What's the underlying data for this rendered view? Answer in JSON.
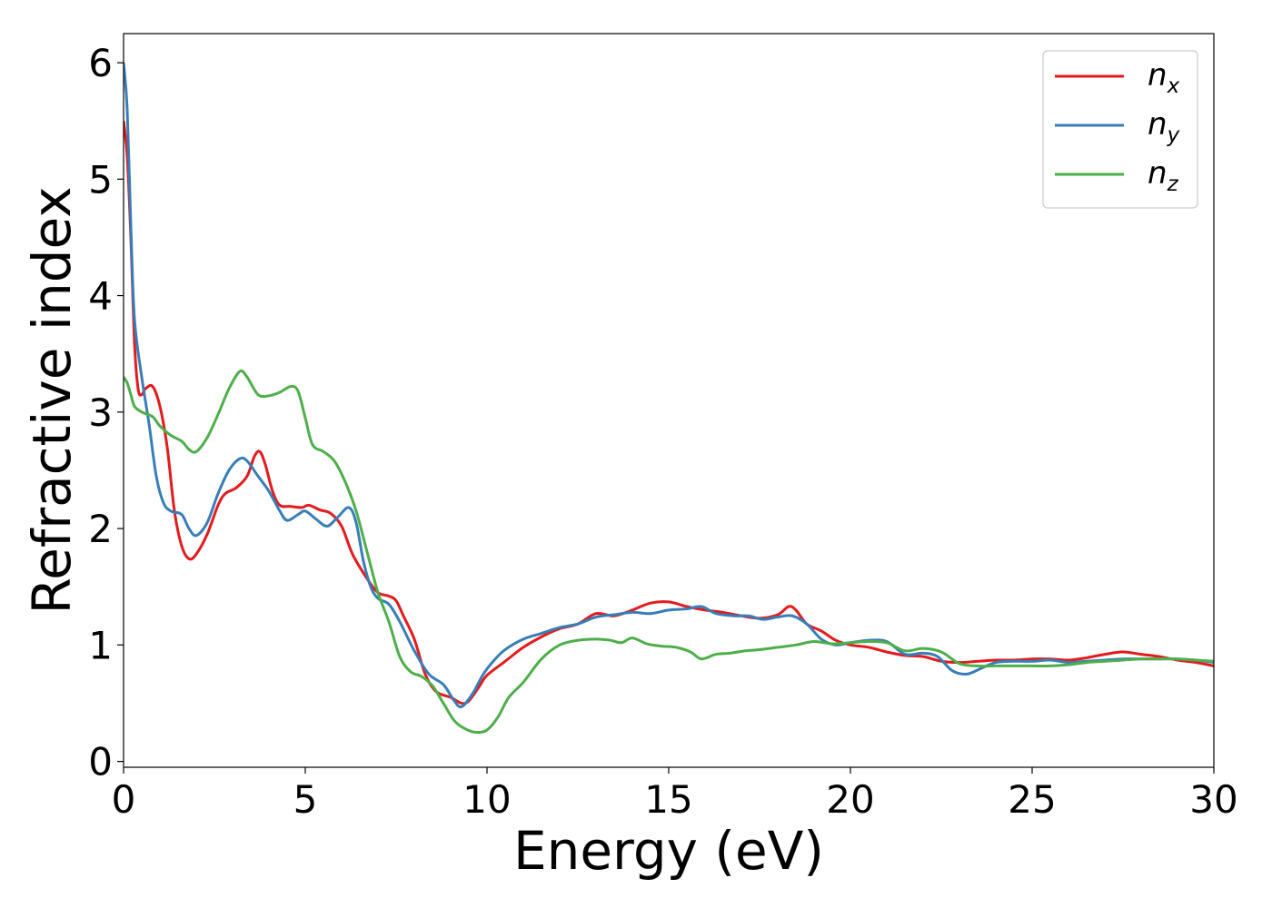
{
  "chart_data": {
    "type": "line",
    "title": "",
    "xlabel": "Energy (eV)",
    "ylabel": "Refractive index",
    "xlim": [
      0,
      30
    ],
    "ylim": [
      -0.05,
      6.25
    ],
    "x_ticks": [
      "0",
      "5",
      "10",
      "15",
      "20",
      "25",
      "30"
    ],
    "y_ticks": [
      "0",
      "1",
      "2",
      "3",
      "4",
      "5",
      "6"
    ],
    "grid": false,
    "legend_position": "top-right",
    "series": [
      {
        "name": "n",
        "subscript": "x",
        "color": "#e41a1c",
        "points": [
          [
            0,
            5.5
          ],
          [
            0.1,
            5.2
          ],
          [
            0.2,
            4.5
          ],
          [
            0.3,
            3.6
          ],
          [
            0.4,
            3.2
          ],
          [
            0.5,
            3.15
          ],
          [
            0.6,
            3.2
          ],
          [
            0.8,
            3.22
          ],
          [
            1.0,
            3.05
          ],
          [
            1.2,
            2.7
          ],
          [
            1.4,
            2.15
          ],
          [
            1.6,
            1.85
          ],
          [
            1.8,
            1.74
          ],
          [
            2.0,
            1.78
          ],
          [
            2.3,
            1.95
          ],
          [
            2.6,
            2.2
          ],
          [
            2.8,
            2.3
          ],
          [
            3.1,
            2.35
          ],
          [
            3.4,
            2.45
          ],
          [
            3.6,
            2.62
          ],
          [
            3.75,
            2.66
          ],
          [
            3.9,
            2.55
          ],
          [
            4.1,
            2.32
          ],
          [
            4.3,
            2.2
          ],
          [
            4.6,
            2.19
          ],
          [
            4.9,
            2.18
          ],
          [
            5.1,
            2.2
          ],
          [
            5.4,
            2.16
          ],
          [
            5.7,
            2.13
          ],
          [
            6.0,
            2.02
          ],
          [
            6.3,
            1.78
          ],
          [
            6.7,
            1.57
          ],
          [
            7.0,
            1.45
          ],
          [
            7.3,
            1.42
          ],
          [
            7.5,
            1.38
          ],
          [
            7.7,
            1.25
          ],
          [
            8.0,
            1.05
          ],
          [
            8.3,
            0.75
          ],
          [
            8.6,
            0.6
          ],
          [
            9.0,
            0.55
          ],
          [
            9.3,
            0.5
          ],
          [
            9.5,
            0.52
          ],
          [
            9.8,
            0.65
          ],
          [
            10.0,
            0.74
          ],
          [
            10.5,
            0.86
          ],
          [
            11.0,
            0.98
          ],
          [
            11.5,
            1.07
          ],
          [
            12.0,
            1.14
          ],
          [
            12.5,
            1.18
          ],
          [
            13.0,
            1.27
          ],
          [
            13.5,
            1.25
          ],
          [
            14.0,
            1.3
          ],
          [
            14.5,
            1.36
          ],
          [
            15.0,
            1.37
          ],
          [
            15.5,
            1.33
          ],
          [
            16.0,
            1.3
          ],
          [
            16.5,
            1.28
          ],
          [
            17.0,
            1.25
          ],
          [
            17.5,
            1.23
          ],
          [
            18.0,
            1.26
          ],
          [
            18.3,
            1.33
          ],
          [
            18.5,
            1.3
          ],
          [
            18.8,
            1.18
          ],
          [
            19.2,
            1.12
          ],
          [
            19.6,
            1.04
          ],
          [
            20.0,
            1.0
          ],
          [
            20.5,
            0.98
          ],
          [
            21.0,
            0.94
          ],
          [
            21.5,
            0.91
          ],
          [
            22.0,
            0.9
          ],
          [
            22.5,
            0.86
          ],
          [
            23.0,
            0.85
          ],
          [
            23.5,
            0.86
          ],
          [
            24.0,
            0.87
          ],
          [
            24.5,
            0.87
          ],
          [
            25.0,
            0.88
          ],
          [
            25.5,
            0.88
          ],
          [
            26.0,
            0.87
          ],
          [
            26.5,
            0.89
          ],
          [
            27.0,
            0.92
          ],
          [
            27.5,
            0.94
          ],
          [
            28.0,
            0.92
          ],
          [
            28.5,
            0.9
          ],
          [
            29.0,
            0.87
          ],
          [
            29.5,
            0.85
          ],
          [
            30.0,
            0.82
          ]
        ]
      },
      {
        "name": "n",
        "subscript": "y",
        "color": "#377eb8",
        "points": [
          [
            0,
            6.0
          ],
          [
            0.1,
            5.6
          ],
          [
            0.2,
            4.6
          ],
          [
            0.3,
            3.8
          ],
          [
            0.5,
            3.3
          ],
          [
            0.7,
            2.9
          ],
          [
            0.9,
            2.45
          ],
          [
            1.1,
            2.22
          ],
          [
            1.3,
            2.15
          ],
          [
            1.6,
            2.12
          ],
          [
            1.8,
            2.0
          ],
          [
            2.0,
            1.94
          ],
          [
            2.3,
            2.05
          ],
          [
            2.6,
            2.3
          ],
          [
            2.9,
            2.5
          ],
          [
            3.2,
            2.6
          ],
          [
            3.4,
            2.58
          ],
          [
            3.7,
            2.45
          ],
          [
            4.0,
            2.32
          ],
          [
            4.3,
            2.15
          ],
          [
            4.5,
            2.07
          ],
          [
            4.8,
            2.12
          ],
          [
            5.0,
            2.15
          ],
          [
            5.3,
            2.08
          ],
          [
            5.6,
            2.02
          ],
          [
            5.9,
            2.1
          ],
          [
            6.2,
            2.18
          ],
          [
            6.4,
            2.05
          ],
          [
            6.6,
            1.72
          ],
          [
            6.8,
            1.5
          ],
          [
            7.0,
            1.4
          ],
          [
            7.3,
            1.35
          ],
          [
            7.6,
            1.2
          ],
          [
            8.0,
            0.95
          ],
          [
            8.4,
            0.75
          ],
          [
            8.8,
            0.66
          ],
          [
            9.1,
            0.52
          ],
          [
            9.3,
            0.47
          ],
          [
            9.6,
            0.58
          ],
          [
            9.9,
            0.75
          ],
          [
            10.2,
            0.87
          ],
          [
            10.5,
            0.96
          ],
          [
            11.0,
            1.05
          ],
          [
            11.5,
            1.1
          ],
          [
            12.0,
            1.15
          ],
          [
            12.5,
            1.18
          ],
          [
            13.0,
            1.24
          ],
          [
            13.5,
            1.26
          ],
          [
            14.0,
            1.28
          ],
          [
            14.5,
            1.27
          ],
          [
            15.0,
            1.3
          ],
          [
            15.5,
            1.31
          ],
          [
            15.9,
            1.33
          ],
          [
            16.3,
            1.27
          ],
          [
            16.8,
            1.25
          ],
          [
            17.2,
            1.25
          ],
          [
            17.6,
            1.22
          ],
          [
            18.0,
            1.24
          ],
          [
            18.4,
            1.25
          ],
          [
            18.8,
            1.18
          ],
          [
            19.2,
            1.05
          ],
          [
            19.6,
            1.0
          ],
          [
            20.0,
            1.02
          ],
          [
            20.5,
            1.04
          ],
          [
            21.0,
            1.03
          ],
          [
            21.5,
            0.92
          ],
          [
            22.0,
            0.93
          ],
          [
            22.4,
            0.9
          ],
          [
            22.8,
            0.78
          ],
          [
            23.2,
            0.75
          ],
          [
            23.6,
            0.8
          ],
          [
            24.0,
            0.85
          ],
          [
            24.5,
            0.86
          ],
          [
            25.0,
            0.86
          ],
          [
            25.5,
            0.87
          ],
          [
            26.0,
            0.85
          ],
          [
            26.5,
            0.86
          ],
          [
            27.0,
            0.87
          ],
          [
            27.5,
            0.88
          ],
          [
            28.0,
            0.88
          ],
          [
            28.5,
            0.88
          ],
          [
            29.0,
            0.88
          ],
          [
            29.5,
            0.87
          ],
          [
            30.0,
            0.85
          ]
        ]
      },
      {
        "name": "n",
        "subscript": "z",
        "color": "#4daf4a",
        "points": [
          [
            0,
            3.3
          ],
          [
            0.1,
            3.25
          ],
          [
            0.2,
            3.15
          ],
          [
            0.3,
            3.05
          ],
          [
            0.5,
            3.0
          ],
          [
            0.8,
            2.96
          ],
          [
            1.0,
            2.88
          ],
          [
            1.3,
            2.8
          ],
          [
            1.6,
            2.75
          ],
          [
            1.8,
            2.68
          ],
          [
            2.0,
            2.66
          ],
          [
            2.3,
            2.78
          ],
          [
            2.6,
            2.98
          ],
          [
            2.9,
            3.2
          ],
          [
            3.2,
            3.35
          ],
          [
            3.4,
            3.3
          ],
          [
            3.7,
            3.15
          ],
          [
            4.0,
            3.14
          ],
          [
            4.3,
            3.17
          ],
          [
            4.6,
            3.22
          ],
          [
            4.8,
            3.18
          ],
          [
            5.0,
            2.95
          ],
          [
            5.2,
            2.72
          ],
          [
            5.5,
            2.66
          ],
          [
            5.8,
            2.58
          ],
          [
            6.1,
            2.4
          ],
          [
            6.4,
            2.15
          ],
          [
            6.7,
            1.8
          ],
          [
            7.0,
            1.45
          ],
          [
            7.3,
            1.2
          ],
          [
            7.6,
            0.9
          ],
          [
            7.9,
            0.77
          ],
          [
            8.2,
            0.73
          ],
          [
            8.5,
            0.65
          ],
          [
            8.8,
            0.5
          ],
          [
            9.1,
            0.35
          ],
          [
            9.4,
            0.28
          ],
          [
            9.7,
            0.25
          ],
          [
            10.0,
            0.27
          ],
          [
            10.3,
            0.38
          ],
          [
            10.6,
            0.55
          ],
          [
            11.0,
            0.68
          ],
          [
            11.5,
            0.88
          ],
          [
            12.0,
            1.0
          ],
          [
            12.5,
            1.04
          ],
          [
            13.0,
            1.05
          ],
          [
            13.4,
            1.04
          ],
          [
            13.7,
            1.02
          ],
          [
            14.0,
            1.06
          ],
          [
            14.4,
            1.01
          ],
          [
            14.8,
            0.99
          ],
          [
            15.2,
            0.98
          ],
          [
            15.6,
            0.94
          ],
          [
            15.9,
            0.88
          ],
          [
            16.3,
            0.92
          ],
          [
            16.7,
            0.93
          ],
          [
            17.1,
            0.95
          ],
          [
            17.5,
            0.96
          ],
          [
            18.0,
            0.98
          ],
          [
            18.5,
            1.0
          ],
          [
            19.0,
            1.03
          ],
          [
            19.5,
            1.01
          ],
          [
            20.0,
            1.02
          ],
          [
            20.5,
            1.03
          ],
          [
            21.0,
            1.02
          ],
          [
            21.5,
            0.95
          ],
          [
            22.0,
            0.97
          ],
          [
            22.5,
            0.94
          ],
          [
            23.0,
            0.84
          ],
          [
            23.5,
            0.82
          ],
          [
            24.0,
            0.82
          ],
          [
            24.5,
            0.82
          ],
          [
            25.0,
            0.82
          ],
          [
            25.5,
            0.82
          ],
          [
            26.0,
            0.83
          ],
          [
            26.5,
            0.85
          ],
          [
            27.0,
            0.86
          ],
          [
            27.5,
            0.87
          ],
          [
            28.0,
            0.88
          ],
          [
            28.5,
            0.88
          ],
          [
            29.0,
            0.88
          ],
          [
            29.5,
            0.87
          ],
          [
            30.0,
            0.86
          ]
        ]
      }
    ]
  }
}
